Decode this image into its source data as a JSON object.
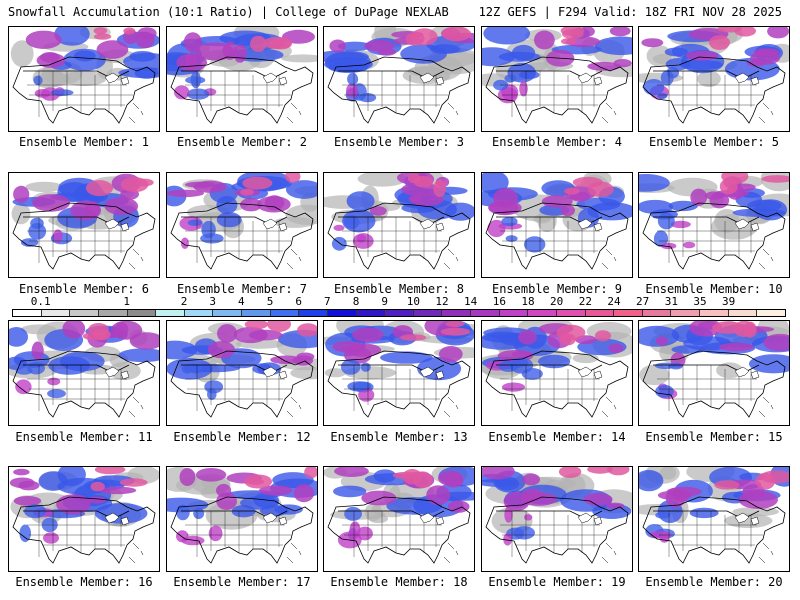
{
  "header": {
    "left": "Snowfall Accumulation (10:1 Ratio) | College of DuPage NEXLAB",
    "right": "12Z GEFS | F294 Valid: 18Z FRI NOV 28 2025"
  },
  "panels": [
    {
      "label": "Ensemble Member: 1"
    },
    {
      "label": "Ensemble Member: 2"
    },
    {
      "label": "Ensemble Member: 3"
    },
    {
      "label": "Ensemble Member: 4"
    },
    {
      "label": "Ensemble Member: 5"
    },
    {
      "label": "Ensemble Member: 6"
    },
    {
      "label": "Ensemble Member: 7"
    },
    {
      "label": "Ensemble Member: 8"
    },
    {
      "label": "Ensemble Member: 9"
    },
    {
      "label": "Ensemble Member: 10"
    },
    {
      "label": "Ensemble Member: 11"
    },
    {
      "label": "Ensemble Member: 12"
    },
    {
      "label": "Ensemble Member: 13"
    },
    {
      "label": "Ensemble Member: 14"
    },
    {
      "label": "Ensemble Member: 15"
    },
    {
      "label": "Ensemble Member: 16"
    },
    {
      "label": "Ensemble Member: 17"
    },
    {
      "label": "Ensemble Member: 18"
    },
    {
      "label": "Ensemble Member: 19"
    },
    {
      "label": "Ensemble Member: 20"
    }
  ],
  "colorbar": {
    "ticks": [
      "0.1",
      "1",
      "2",
      "3",
      "4",
      "5",
      "6",
      "7",
      "8",
      "9",
      "10",
      "12",
      "14",
      "16",
      "18",
      "20",
      "22",
      "24",
      "27",
      "31",
      "35",
      "39"
    ],
    "colors": [
      "#ffffff",
      "#e8e8e8",
      "#c8c8c8",
      "#a8a8a8",
      "#8c8c8c",
      "#c0f0f0",
      "#a0d8f8",
      "#80b8f0",
      "#6098f0",
      "#4070f0",
      "#2040e8",
      "#1010d8",
      "#3018c8",
      "#5020c0",
      "#7028b8",
      "#9030b8",
      "#a838c0",
      "#c040c8",
      "#d048c0",
      "#e050b0",
      "#e85898",
      "#f06088",
      "#e878a0",
      "#f09cb0",
      "#f8c0c0",
      "#f8dcd0",
      "#fcf0e0"
    ]
  }
}
